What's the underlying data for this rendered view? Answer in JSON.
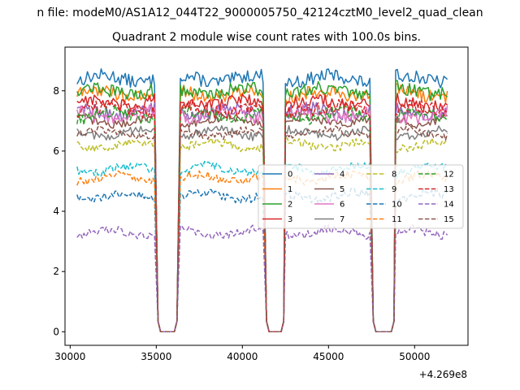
{
  "chart_data": {
    "type": "line",
    "suptitle": "n file: modeM0/AS1A12_044T22_9000005750_42124cztM0_level2_quad_clean",
    "title": "Quadrant 2 module wise count rates with 100.0s bins.",
    "xlabel": "",
    "ylabel": "",
    "x_offset_label": "+4.269e8",
    "xlim": [
      29700,
      53100
    ],
    "ylim": [
      -0.45,
      9.45
    ],
    "xticks": [
      30000,
      35000,
      40000,
      45000,
      50000
    ],
    "xtick_labels": [
      "30000",
      "35000",
      "40000",
      "45000",
      "50000"
    ],
    "yticks": [
      0,
      2,
      4,
      6,
      8
    ],
    "ytick_labels": [
      "0",
      "2",
      "4",
      "6",
      "8"
    ],
    "data_segments": [
      [
        30400,
        34900
      ],
      [
        36400,
        41200
      ],
      [
        42500,
        47400
      ],
      [
        48900,
        51900
      ]
    ],
    "gap_ramp_ends": [
      [
        35100,
        36200
      ],
      [
        41400,
        42400
      ],
      [
        47600,
        48800
      ]
    ],
    "legend": {
      "location": "center-right",
      "ncol": 4
    },
    "series": [
      {
        "name": "0",
        "color": "#1f77b4",
        "dash": "solid",
        "level": 8.4
      },
      {
        "name": "1",
        "color": "#ff7f0e",
        "dash": "solid",
        "level": 7.9
      },
      {
        "name": "2",
        "color": "#2ca02c",
        "dash": "solid",
        "level": 8.0
      },
      {
        "name": "3",
        "color": "#d62728",
        "dash": "solid",
        "level": 7.6
      },
      {
        "name": "4",
        "color": "#9467bd",
        "dash": "solid",
        "level": 7.3
      },
      {
        "name": "5",
        "color": "#8c564b",
        "dash": "solid",
        "level": 7.0
      },
      {
        "name": "6",
        "color": "#e377c2",
        "dash": "solid",
        "level": 7.2
      },
      {
        "name": "7",
        "color": "#7f7f7f",
        "dash": "solid",
        "level": 6.6
      },
      {
        "name": "8",
        "color": "#bcbd22",
        "dash": "dashed",
        "level": 6.2
      },
      {
        "name": "9",
        "color": "#17becf",
        "dash": "dashed",
        "level": 5.4
      },
      {
        "name": "10",
        "color": "#1f77b4",
        "dash": "dashed",
        "level": 4.5
      },
      {
        "name": "11",
        "color": "#ff7f0e",
        "dash": "dashed",
        "level": 5.1
      },
      {
        "name": "12",
        "color": "#2ca02c",
        "dash": "dashed",
        "level": 7.2
      },
      {
        "name": "13",
        "color": "#d62728",
        "dash": "dashed",
        "level": 7.4
      },
      {
        "name": "14",
        "color": "#9467bd",
        "dash": "dashed",
        "level": 3.3
      },
      {
        "name": "15",
        "color": "#8c564b",
        "dash": "dashed",
        "level": 6.6
      }
    ]
  }
}
